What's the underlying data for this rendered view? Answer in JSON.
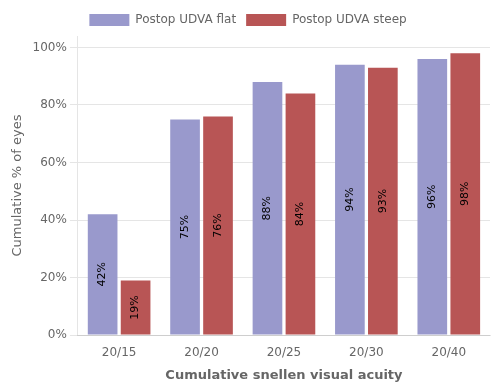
{
  "chart_data": {
    "type": "bar",
    "categories": [
      "20/15",
      "20/20",
      "20/25",
      "20/30",
      "20/40"
    ],
    "series": [
      {
        "name": "Postop UDVA flat",
        "color": "#9999cc",
        "values": [
          42,
          75,
          88,
          94,
          96
        ],
        "value_labels": [
          "42%",
          "75%",
          "88%",
          "94%",
          "96%"
        ]
      },
      {
        "name": "Postop UDVA steep",
        "color": "#b85555",
        "values": [
          19,
          76,
          84,
          93,
          98
        ],
        "value_labels": [
          "19%",
          "76%",
          "84%",
          "93%",
          "98%"
        ]
      }
    ],
    "xlabel": "Cumulative snellen visual acuity",
    "ylabel": "Cumulative % of eyes",
    "ylim": [
      0,
      104
    ],
    "yticks": [
      {
        "value": 0,
        "label": "0%"
      },
      {
        "value": 20,
        "label": "20%"
      },
      {
        "value": 40,
        "label": "40%"
      },
      {
        "value": 60,
        "label": "60%"
      },
      {
        "value": 80,
        "label": "80%"
      },
      {
        "value": 100,
        "label": "100%"
      }
    ],
    "grid": true,
    "legend": "top",
    "data_labels": true
  }
}
